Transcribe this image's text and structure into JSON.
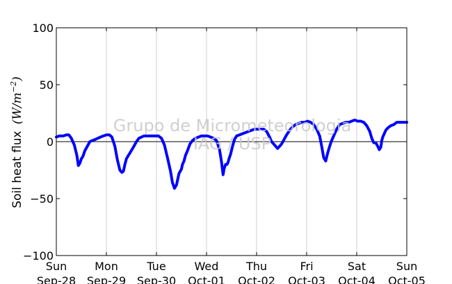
{
  "chart_data": {
    "type": "line",
    "ylabel": "Soil heat flux",
    "ylabel_unit": "(W/m",
    "ylabel_unit_exp": "−2",
    "ylabel_unit_close": ")",
    "ylim": [
      -100,
      100
    ],
    "xlim": [
      0,
      7
    ],
    "y_ticks": [
      {
        "value": 100,
        "label": "100"
      },
      {
        "value": 50,
        "label": "50"
      },
      {
        "value": 0,
        "label": "0"
      },
      {
        "value": -50,
        "label": "−50"
      },
      {
        "value": -100,
        "label": "−100"
      }
    ],
    "x_ticks": [
      {
        "value": 0,
        "day": "Sun",
        "date": "Sep-28"
      },
      {
        "value": 1,
        "day": "Mon",
        "date": "Sep-29"
      },
      {
        "value": 2,
        "day": "Tue",
        "date": "Sep-30"
      },
      {
        "value": 3,
        "day": "Wed",
        "date": "Oct-01"
      },
      {
        "value": 4,
        "day": "Thu",
        "date": "Oct-02"
      },
      {
        "value": 5,
        "day": "Fri",
        "date": "Oct-03"
      },
      {
        "value": 6,
        "day": "Sat",
        "date": "Oct-04"
      },
      {
        "value": 7,
        "day": "Sun",
        "date": "Oct-05"
      }
    ],
    "grid": "vertical",
    "zero_line": true,
    "series": [
      {
        "color": "#0000ff",
        "x": [
          0.0,
          0.06,
          0.14,
          0.2,
          0.25,
          0.3,
          0.36,
          0.41,
          0.44,
          0.47,
          0.5,
          0.53,
          0.57,
          0.62,
          0.67,
          0.72,
          0.78,
          0.83,
          0.88,
          0.94,
          1.0,
          1.06,
          1.11,
          1.17,
          1.22,
          1.27,
          1.31,
          1.34,
          1.37,
          1.4,
          1.44,
          1.47,
          1.51,
          1.55,
          1.6,
          1.65,
          1.7,
          1.75,
          1.8,
          1.86,
          1.92,
          1.98,
          2.04,
          2.1,
          2.16,
          2.22,
          2.28,
          2.32,
          2.36,
          2.4,
          2.45,
          2.5,
          2.52,
          2.55,
          2.58,
          2.62,
          2.67,
          2.72,
          2.78,
          2.84,
          2.9,
          2.96,
          3.02,
          3.08,
          3.14,
          3.2,
          3.26,
          3.3,
          3.33,
          3.35,
          3.38,
          3.41,
          3.43,
          3.45,
          3.48,
          3.52,
          3.56,
          3.6,
          3.66,
          3.72,
          3.78,
          3.84,
          3.9,
          3.96,
          4.02,
          4.08,
          4.14,
          4.2,
          4.26,
          4.3,
          4.34,
          4.38,
          4.42,
          4.46,
          4.5,
          4.55,
          4.6,
          4.66,
          4.72,
          4.78,
          4.84,
          4.9,
          4.96,
          5.02,
          5.08,
          5.14,
          5.2,
          5.26,
          5.3,
          5.34,
          5.38,
          5.42,
          5.46,
          5.49,
          5.52,
          5.56,
          5.6,
          5.66,
          5.72,
          5.78,
          5.84,
          5.9,
          5.96,
          6.02,
          6.08,
          6.14,
          6.2,
          6.26,
          6.3,
          6.34,
          6.38,
          6.42,
          6.45,
          6.48,
          6.5,
          6.52,
          6.55,
          6.58,
          6.62,
          6.68,
          6.74,
          6.8,
          6.86,
          6.92,
          7.0
        ],
        "y": [
          4,
          5,
          5,
          6,
          6,
          3,
          -3,
          -12,
          -21,
          -19,
          -15,
          -13,
          -8,
          -4,
          0,
          1,
          2,
          3,
          4,
          5,
          6,
          6,
          4,
          -4,
          -16,
          -25,
          -27,
          -26,
          -20,
          -15,
          -12,
          -10,
          -7,
          -4,
          0,
          3,
          4,
          5,
          5,
          5,
          5,
          5,
          5,
          3,
          -3,
          -14,
          -26,
          -36,
          -41,
          -38,
          -28,
          -24,
          -20,
          -17,
          -12,
          -8,
          -2,
          1,
          3,
          4,
          5,
          5,
          5,
          4,
          3,
          1,
          -7,
          -18,
          -29,
          -24,
          -20,
          -20,
          -18,
          -15,
          -11,
          -4,
          2,
          5,
          6,
          7,
          8,
          9,
          10,
          11,
          11,
          11,
          11,
          9,
          4,
          0,
          -2,
          -4,
          -6,
          -4,
          -2,
          2,
          6,
          10,
          13,
          15,
          16,
          17,
          17,
          18,
          17,
          15,
          11,
          5,
          -4,
          -14,
          -17,
          -10,
          -4,
          0,
          3,
          7,
          11,
          15,
          16,
          17,
          17,
          18,
          19,
          18,
          18,
          17,
          14,
          9,
          3,
          -1,
          -1,
          -4,
          -7,
          -5,
          1,
          4,
          7,
          10,
          12,
          14,
          15,
          17,
          17,
          17,
          17
        ]
      }
    ]
  },
  "watermark": {
    "line1": "Grupo de Micrometeorologia",
    "line2": "IAG / USP"
  }
}
